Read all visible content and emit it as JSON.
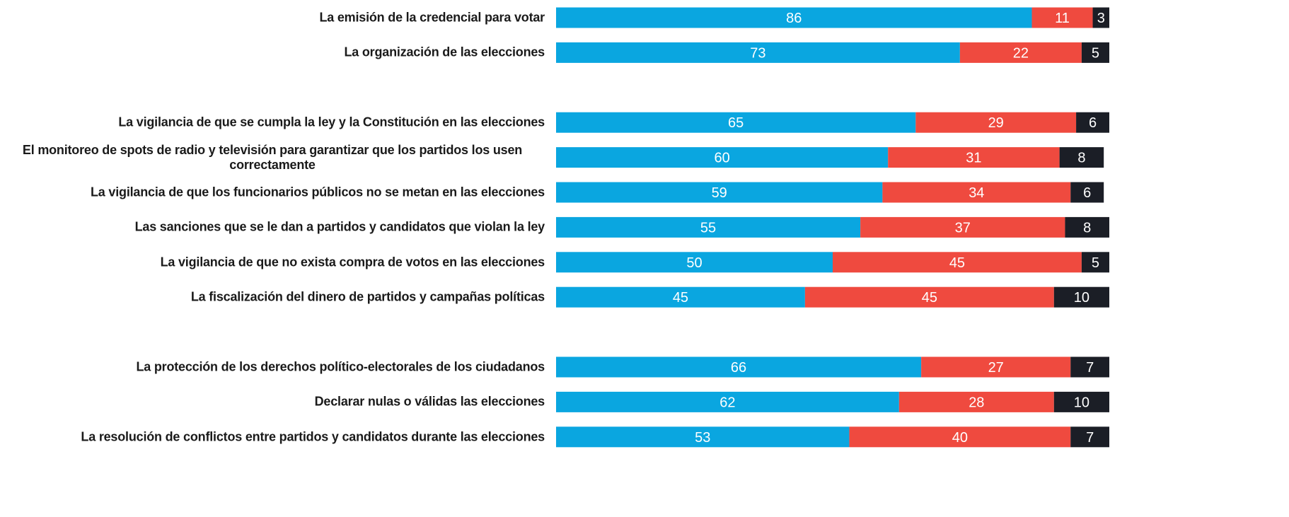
{
  "chart_data": {
    "type": "stacked_barh",
    "categories": [
      "La emisión de la credencial para votar",
      "La organización de las elecciones",
      null,
      "La vigilancia de que se cumpla la ley y la Constitución en las elecciones",
      "El monitoreo de spots de radio y televisión para garantizar que los partidos los usen correctamente",
      "La vigilancia de que los funcionarios públicos no se metan en las elecciones",
      "Las sanciones que se le dan a partidos y candidatos que violan la ley",
      "La vigilancia de que no exista compra de votos en las elecciones",
      "La fiscalización del dinero de partidos y campañas políticas",
      null,
      "La protección de los derechos político-electorales de los ciudadanos",
      "Declarar nulas o válidas las elecciones",
      "La resolución de conflictos entre partidos y candidatos durante las elecciones"
    ],
    "series": [
      {
        "color": "#0aa6e0",
        "values": [
          86,
          73,
          null,
          65,
          60,
          59,
          55,
          50,
          45,
          null,
          66,
          62,
          53
        ]
      },
      {
        "color": "#ef4a3f",
        "values": [
          11,
          22,
          null,
          29,
          31,
          34,
          37,
          45,
          45,
          null,
          27,
          28,
          40
        ]
      },
      {
        "color": "#1b1e26",
        "values": [
          3,
          5,
          null,
          6,
          8,
          6,
          8,
          5,
          10,
          null,
          7,
          10,
          7
        ]
      }
    ],
    "xlim": [
      0,
      100
    ]
  }
}
